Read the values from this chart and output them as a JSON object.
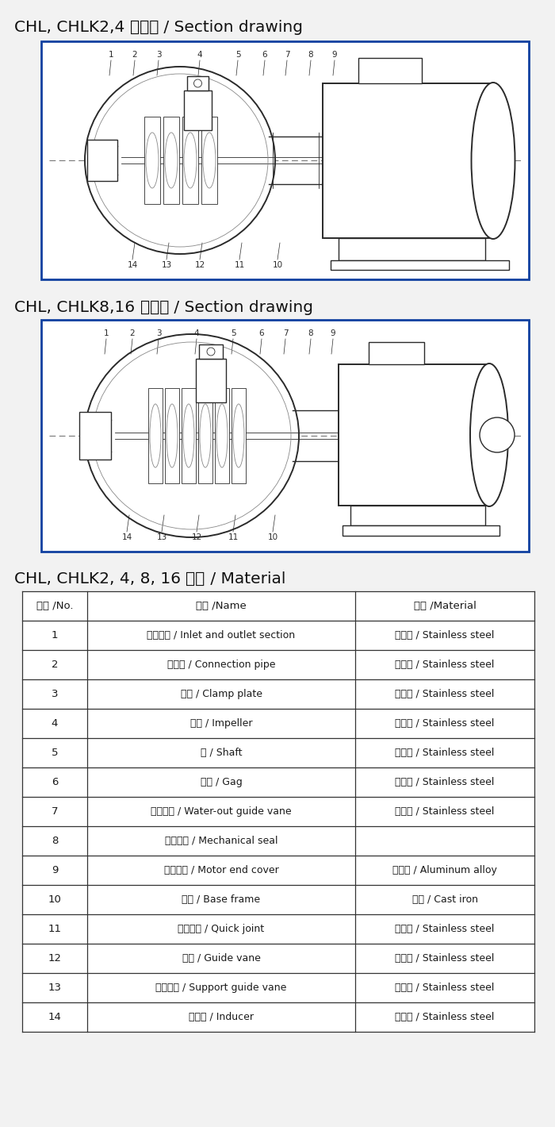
{
  "page_bg": "#f2f2f2",
  "box_border_color": "#1040a0",
  "line_color": "#2a2a2a",
  "table_line_color": "#333333",
  "text_color": "#1a1a1a",
  "title1_parts": [
    [
      "CHL, CHLK2,4 ",
      false
    ],
    [
      "截面图",
      true
    ],
    [
      " / Section drawing",
      false
    ]
  ],
  "title2_parts": [
    [
      "CHL, CHLK8,16 ",
      false
    ],
    [
      "截面图",
      true
    ],
    [
      " / Section drawing",
      false
    ]
  ],
  "title3_parts": [
    [
      "CHL, CHLK2, 4, 8, 16 ",
      false
    ],
    [
      "材料",
      true
    ],
    [
      " / Material",
      false
    ]
  ],
  "table_header": [
    "序号 /No.",
    "名称 /Name",
    "材料 /Material"
  ],
  "table_rows": [
    [
      "1",
      "进出水段 / Inlet and outlet section",
      "不锈钑 / Stainless steel"
    ],
    [
      "2",
      "连接管 / Connection pipe",
      "不锈钑 / Stainless steel"
    ],
    [
      "3",
      "压板 / Clamp plate",
      "不锈钑 / Stainless steel"
    ],
    [
      "4",
      "叶轮 / Impeller",
      "不锈钑 / Stainless steel"
    ],
    [
      "5",
      "轴 / Shaft",
      "不锈钑 / Stainless steel"
    ],
    [
      "6",
      "堵头 / Gag",
      "不锈钑 / Stainless steel"
    ],
    [
      "7",
      "出水导叶 / Water-out guide vane",
      "不锈钑 / Stainless steel"
    ],
    [
      "8",
      "机械密封 / Mechanical seal",
      ""
    ],
    [
      "9",
      "电机端盖 / Motor end cover",
      "铝合金 / Aluminum alloy"
    ],
    [
      "10",
      "底座 / Base frame",
      "铸鐵 / Cast iron"
    ],
    [
      "11",
      "快速接头 / Quick joint",
      "不锈钑 / Stainless steel"
    ],
    [
      "12",
      "导叶 / Guide vane",
      "不锈钑 / Stainless steel"
    ],
    [
      "13",
      "支撑导叶 / Support guide vane",
      "不锈钑 / Stainless steel"
    ],
    [
      "14",
      "导流器 / Inducer",
      "不锈钑 / Stainless steel"
    ]
  ]
}
